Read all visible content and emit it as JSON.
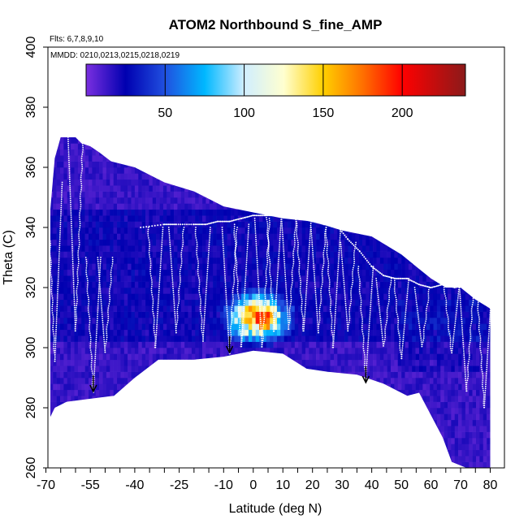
{
  "chart_data": {
    "type": "heatmap",
    "title": "ATOM2 Northbound S_fine_AMP",
    "flights_note": "Flts: 6,7,8,9,10",
    "dates_note": "MMDD: 0210,0213,0215,0218,0219",
    "xlabel": "Latitude (deg N)",
    "ylabel": "Theta (C)",
    "xlim": [
      -70,
      80
    ],
    "ylim": [
      260,
      400
    ],
    "x_tick_values": [
      -70,
      -55,
      -40,
      -25,
      -10,
      0,
      10,
      20,
      30,
      40,
      50,
      60,
      70,
      80
    ],
    "x_tick_labels": [
      "-70",
      "-55",
      "-40",
      "-25",
      "-10",
      "0",
      "10",
      "20",
      "30",
      "40",
      "50",
      "60",
      "70",
      "80"
    ],
    "y_tick_values": [
      260,
      280,
      300,
      320,
      340,
      360,
      380,
      400
    ],
    "y_tick_labels": [
      "260",
      "280",
      "300",
      "320",
      "340",
      "360",
      "380",
      "400"
    ],
    "colorbar": {
      "range": [
        0,
        240
      ],
      "tick_values": [
        50,
        100,
        150,
        200
      ],
      "tick_labels": [
        "50",
        "100",
        "150",
        "200"
      ],
      "color_stops": [
        {
          "value": 0,
          "color": "#7b2fe0"
        },
        {
          "value": 25,
          "color": "#0000b0"
        },
        {
          "value": 50,
          "color": "#2050e0"
        },
        {
          "value": 75,
          "color": "#00b8ff"
        },
        {
          "value": 100,
          "color": "#d0eeff"
        },
        {
          "value": 125,
          "color": "#ffffd0"
        },
        {
          "value": 150,
          "color": "#ffd000"
        },
        {
          "value": 175,
          "color": "#ff7000"
        },
        {
          "value": 200,
          "color": "#ff0000"
        },
        {
          "value": 240,
          "color": "#8b1a1a"
        }
      ]
    },
    "data_envelope": {
      "top": [
        [
          -68.5,
          346
        ],
        [
          -67,
          363
        ],
        [
          -65,
          370
        ],
        [
          -60,
          370
        ],
        [
          -58,
          368
        ],
        [
          -55,
          367
        ],
        [
          -52,
          365
        ],
        [
          -48,
          362
        ],
        [
          -40,
          360
        ],
        [
          -30,
          355
        ],
        [
          -20,
          352
        ],
        [
          -10,
          347
        ],
        [
          0,
          345
        ],
        [
          10,
          343
        ],
        [
          20,
          342
        ],
        [
          30,
          339
        ],
        [
          40,
          337
        ],
        [
          50,
          331
        ],
        [
          55,
          327
        ],
        [
          60,
          323
        ],
        [
          65,
          320
        ],
        [
          70,
          320
        ],
        [
          75,
          316
        ],
        [
          80,
          313
        ]
      ],
      "bottom": [
        [
          80,
          260
        ],
        [
          72,
          260
        ],
        [
          67,
          262
        ],
        [
          64,
          270
        ],
        [
          56,
          285
        ],
        [
          52,
          284
        ],
        [
          44,
          288
        ],
        [
          35,
          291
        ],
        [
          25,
          292
        ],
        [
          18,
          293
        ],
        [
          10,
          298
        ],
        [
          0,
          299
        ],
        [
          -10,
          297
        ],
        [
          -20,
          296
        ],
        [
          -32,
          296
        ],
        [
          -40,
          290
        ],
        [
          -47,
          284
        ],
        [
          -55,
          283
        ],
        [
          -63,
          282
        ],
        [
          -67,
          280
        ],
        [
          -68.5,
          277
        ]
      ]
    },
    "high_value_region": {
      "lat": [
        -8,
        10
      ],
      "theta": [
        300,
        318
      ],
      "peak_value": 210
    },
    "vertical_profiles": [
      {
        "lat": -67,
        "theta_range": [
          295,
          355
        ]
      },
      {
        "lat": -60,
        "theta_range": [
          305,
          370
        ]
      },
      {
        "lat": -54,
        "theta_range": [
          285,
          330
        ]
      },
      {
        "lat": -50,
        "theta_range": [
          298,
          330
        ]
      },
      {
        "lat": -33,
        "theta_range": [
          300,
          340
        ]
      },
      {
        "lat": -26,
        "theta_range": [
          305,
          340
        ]
      },
      {
        "lat": -17,
        "theta_range": [
          302,
          340
        ]
      },
      {
        "lat": -8,
        "theta_range": [
          298,
          340
        ]
      },
      {
        "lat": -4,
        "theta_range": [
          300,
          341
        ]
      },
      {
        "lat": 3,
        "theta_range": [
          300,
          343
        ]
      },
      {
        "lat": 7,
        "theta_range": [
          305,
          344
        ]
      },
      {
        "lat": 12,
        "theta_range": [
          306,
          344
        ]
      },
      {
        "lat": 17,
        "theta_range": [
          305,
          342
        ]
      },
      {
        "lat": 22,
        "theta_range": [
          305,
          340
        ]
      },
      {
        "lat": 27,
        "theta_range": [
          300,
          340
        ]
      },
      {
        "lat": 32,
        "theta_range": [
          305,
          335
        ]
      },
      {
        "lat": 38,
        "theta_range": [
          290,
          327
        ]
      },
      {
        "lat": 44,
        "theta_range": [
          300,
          323
        ]
      },
      {
        "lat": 50,
        "theta_range": [
          296,
          323
        ]
      },
      {
        "lat": 57,
        "theta_range": [
          300,
          320
        ]
      },
      {
        "lat": 67,
        "theta_range": [
          298,
          320
        ]
      },
      {
        "lat": 72,
        "theta_range": [
          285,
          322
        ]
      },
      {
        "lat": 78,
        "theta_range": [
          280,
          320
        ]
      }
    ],
    "tropopause_line": [
      [
        -38,
        340
      ],
      [
        -30,
        341
      ],
      [
        -26,
        341
      ],
      [
        -20,
        341
      ],
      [
        -16,
        341
      ],
      [
        -12,
        342
      ],
      [
        -8,
        342
      ],
      [
        -4,
        343
      ],
      [
        0,
        344
      ],
      [
        4,
        344
      ],
      [
        8,
        344
      ],
      [
        12,
        344
      ],
      [
        16,
        343
      ],
      [
        20,
        342
      ],
      [
        24,
        341
      ],
      [
        28,
        341
      ],
      [
        32,
        336
      ],
      [
        36,
        332
      ],
      [
        40,
        327
      ],
      [
        44,
        324
      ],
      [
        48,
        323
      ],
      [
        52,
        323
      ],
      [
        56,
        321
      ],
      [
        60,
        320
      ],
      [
        64,
        321
      ],
      [
        68,
        320
      ],
      [
        72,
        321
      ],
      [
        76,
        320
      ],
      [
        80,
        320
      ]
    ],
    "arrows": [
      {
        "lat": -54,
        "theta": 287
      },
      {
        "lat": -8,
        "theta": 300
      },
      {
        "lat": 38,
        "theta": 290
      }
    ]
  }
}
